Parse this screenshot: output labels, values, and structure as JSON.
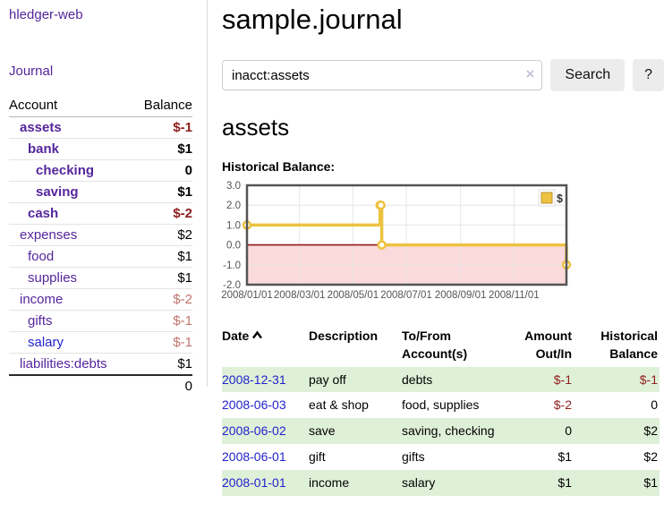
{
  "sidebar": {
    "brand": "hledger-web",
    "journal_link": "Journal",
    "accounts_table": {
      "account_header": "Account",
      "balance_header": "Balance",
      "rows": [
        {
          "name": "assets",
          "balance": "$-1",
          "depth": 1,
          "bold": true,
          "balance_class": "neg-strong",
          "link_color": "purple"
        },
        {
          "name": "bank",
          "balance": "$1",
          "depth": 2,
          "bold": true,
          "balance_class": "",
          "link_color": "purple"
        },
        {
          "name": "checking",
          "balance": "0",
          "depth": 3,
          "bold": true,
          "balance_class": "",
          "link_color": "purple"
        },
        {
          "name": "saving",
          "balance": "$1",
          "depth": 3,
          "bold": true,
          "balance_class": "",
          "link_color": "purple"
        },
        {
          "name": "cash",
          "balance": "$-2",
          "depth": 2,
          "bold": true,
          "balance_class": "neg-strong",
          "link_color": "purple"
        },
        {
          "name": "expenses",
          "balance": "$2",
          "depth": 1,
          "bold": false,
          "balance_class": "",
          "link_color": "purple"
        },
        {
          "name": "food",
          "balance": "$1",
          "depth": 2,
          "bold": false,
          "balance_class": "",
          "link_color": "purple"
        },
        {
          "name": "supplies",
          "balance": "$1",
          "depth": 2,
          "bold": false,
          "balance_class": "",
          "link_color": "purple"
        },
        {
          "name": "income",
          "balance": "$-2",
          "depth": 1,
          "bold": false,
          "balance_class": "neg-soft",
          "link_color": "purple"
        },
        {
          "name": "gifts",
          "balance": "$-1",
          "depth": 2,
          "bold": false,
          "balance_class": "neg-soft",
          "link_color": "purple"
        },
        {
          "name": "salary",
          "balance": "$-1",
          "depth": 2,
          "bold": false,
          "balance_class": "neg-soft",
          "link_color": "blue"
        },
        {
          "name": "liabilities:debts",
          "balance": "$1",
          "depth": 1,
          "bold": false,
          "balance_class": "",
          "link_color": "purple"
        }
      ],
      "total": "0"
    }
  },
  "header": {
    "title": "sample.journal"
  },
  "search": {
    "value": "inacct:assets",
    "clear_icon": "×",
    "button_label": "Search",
    "help_label": "?"
  },
  "account_page": {
    "heading": "assets",
    "chart_label": "Historical Balance:"
  },
  "chart_data": {
    "type": "line",
    "step": true,
    "title": "Historical Balance:",
    "series": [
      {
        "name": "$",
        "color": "#edc240",
        "points": [
          [
            "2008-01-01",
            1
          ],
          [
            "2008-06-01",
            2
          ],
          [
            "2008-06-02",
            2
          ],
          [
            "2008-06-03",
            0
          ],
          [
            "2008-12-31",
            -1
          ]
        ]
      }
    ],
    "xlim": [
      "2008-01-01",
      "2008-12-31"
    ],
    "ylim": [
      -2,
      3
    ],
    "x_ticks": [
      "2008/01/01",
      "2008/03/01",
      "2008/05/01",
      "2008/07/01",
      "2008/09/01",
      "2008/11/01"
    ],
    "y_ticks": [
      3.0,
      2.0,
      1.0,
      0.0,
      -1.0,
      -2.0
    ],
    "grid": true,
    "legend_position": "top-right",
    "negative_fill": "#fadada",
    "zero_line_color": "#941616",
    "grid_color": "#e6e6e6",
    "plot_border_color": "#545454"
  },
  "register": {
    "headers": [
      {
        "label": "Date",
        "label2": "",
        "sort_asc": true,
        "align": "left"
      },
      {
        "label": "Description",
        "label2": "",
        "align": "left"
      },
      {
        "label": "To/From",
        "label2": "Account(s)",
        "align": "left"
      },
      {
        "label": "Amount",
        "label2": "Out/In",
        "align": "right"
      },
      {
        "label": "Historical",
        "label2": "Balance",
        "align": "right"
      }
    ],
    "rows": [
      {
        "date": "2008-12-31",
        "description": "pay off",
        "accounts": "debts",
        "amount": "$-1",
        "balance": "$-1",
        "amount_class": "neg-strong",
        "balance_class": "neg-strong",
        "shaded": true
      },
      {
        "date": "2008-06-03",
        "description": "eat & shop",
        "accounts": "food, supplies",
        "amount": "$-2",
        "balance": "0",
        "amount_class": "neg-strong",
        "balance_class": "",
        "shaded": false
      },
      {
        "date": "2008-06-02",
        "description": "save",
        "accounts": "saving, checking",
        "amount": "0",
        "balance": "$2",
        "amount_class": "",
        "balance_class": "",
        "shaded": true
      },
      {
        "date": "2008-06-01",
        "description": "gift",
        "accounts": "gifts",
        "amount": "$1",
        "balance": "$2",
        "amount_class": "",
        "balance_class": "",
        "shaded": false
      },
      {
        "date": "2008-01-01",
        "description": "income",
        "accounts": "salary",
        "amount": "$1",
        "balance": "$1",
        "amount_class": "",
        "balance_class": "",
        "shaded": true
      }
    ]
  }
}
